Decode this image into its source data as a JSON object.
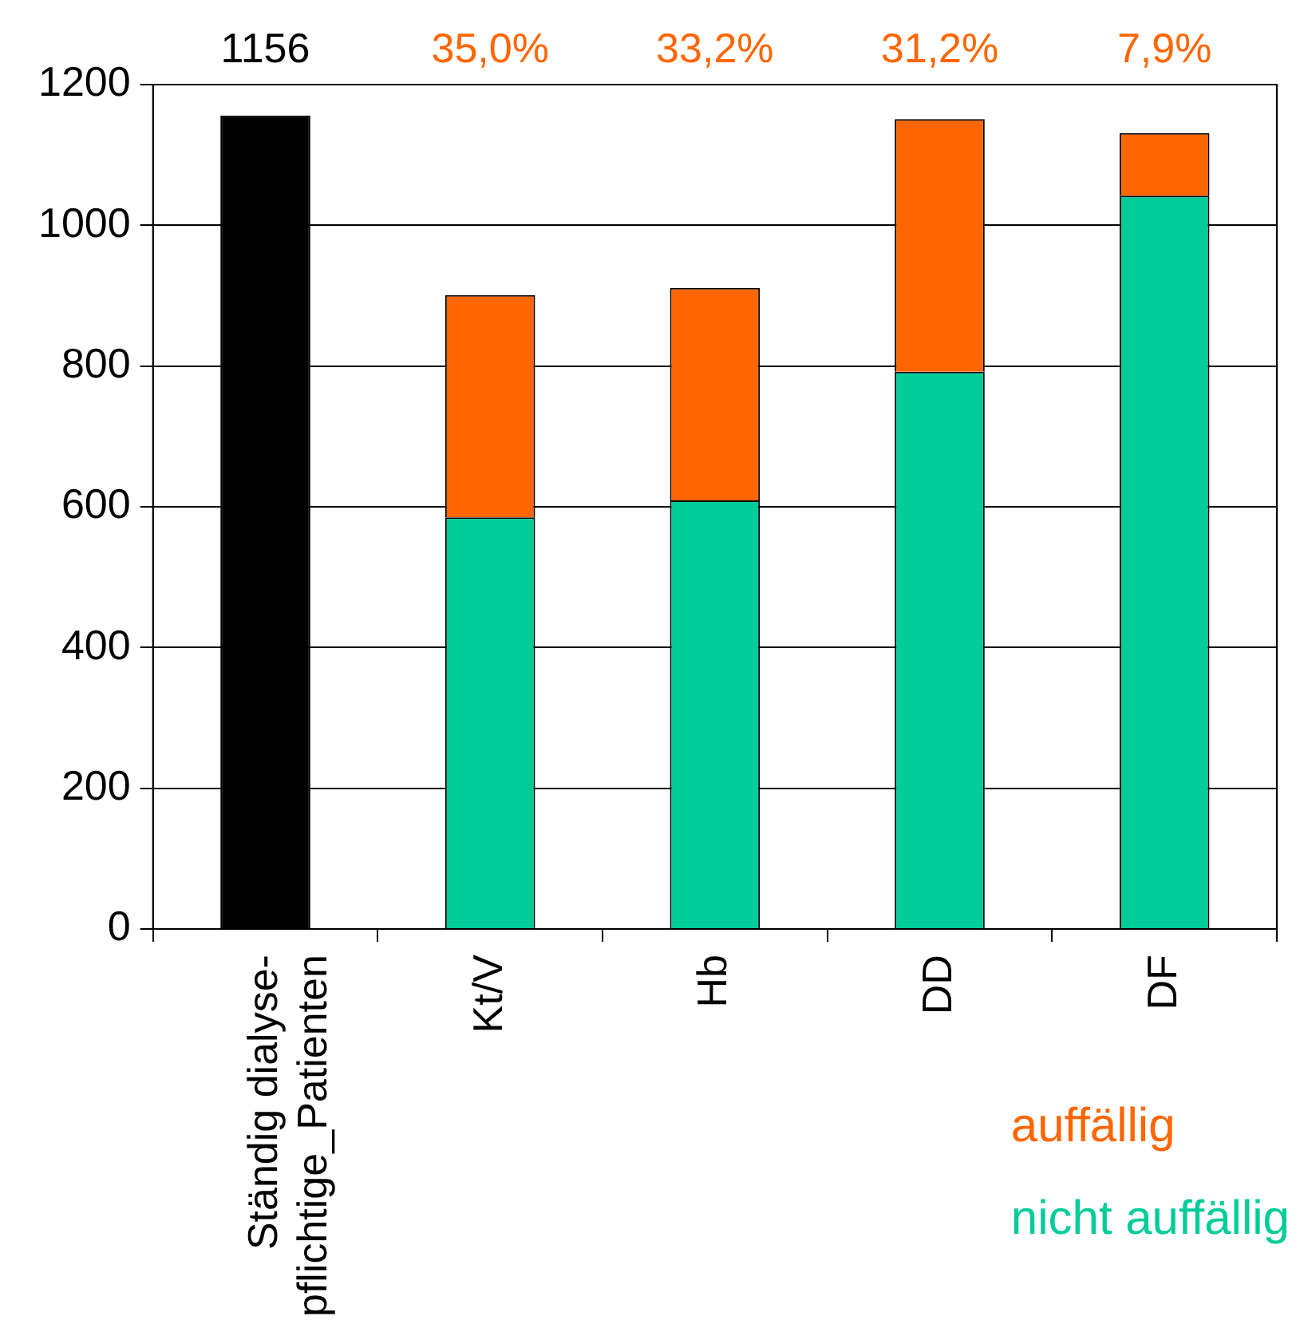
{
  "chart_data": {
    "type": "bar",
    "stacked": true,
    "categories": [
      "Ständig dialyse-pflichtige_Patienten",
      "Kt/V",
      "Hb",
      "DD",
      "DF"
    ],
    "series": [
      {
        "color": "#000000",
        "values": [
          1156,
          null,
          null,
          null,
          null
        ],
        "value_labels": [
          "1156",
          null,
          null,
          null,
          null
        ]
      },
      {
        "name": "nicht auffällig",
        "color": "#00cc99",
        "values": [
          null,
          585,
          609,
          792,
          1042
        ]
      },
      {
        "name": "auffällig",
        "color": "#ff6600",
        "values": [
          null,
          316,
          302,
          359,
          89
        ]
      }
    ],
    "annotations": [
      "35,0%",
      "33,2%",
      "31,2%",
      "7,9%"
    ],
    "ylim": [
      0,
      1200
    ],
    "yticks": [
      0,
      200,
      400,
      600,
      800,
      1000,
      1200
    ],
    "grid": "y",
    "legend": "bottom right"
  }
}
